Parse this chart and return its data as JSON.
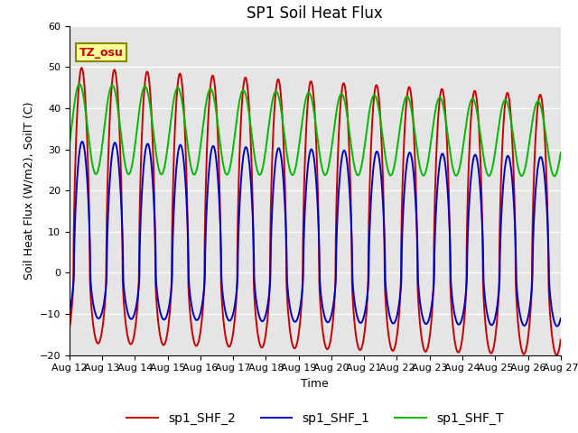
{
  "title": "SP1 Soil Heat Flux",
  "xlabel": "Time",
  "ylabel": "Soil Heat Flux (W/m2), SoilT (C)",
  "ylim": [
    -20,
    60
  ],
  "xlim_days": [
    0,
    15
  ],
  "xtick_labels": [
    "Aug 12",
    "Aug 13",
    "Aug 14",
    "Aug 15",
    "Aug 16",
    "Aug 17",
    "Aug 18",
    "Aug 19",
    "Aug 20",
    "Aug 21",
    "Aug 22",
    "Aug 23",
    "Aug 24",
    "Aug 25",
    "Aug 26",
    "Aug 27"
  ],
  "color_shf2": "#CC0000",
  "color_shf1": "#0000CC",
  "color_shft": "#00BB00",
  "label_shf2": "sp1_SHF_2",
  "label_shf1": "sp1_SHF_1",
  "label_shft": "sp1_SHF_T",
  "tz_label": "TZ_osu",
  "bg_color": "#E5E5E5",
  "fig_bg": "#FFFFFF",
  "linewidth": 1.4,
  "title_fontsize": 12,
  "axis_fontsize": 9,
  "tick_fontsize": 8,
  "legend_fontsize": 10,
  "annotation_facecolor": "#FFFF99",
  "annotation_edgecolor": "#888800"
}
